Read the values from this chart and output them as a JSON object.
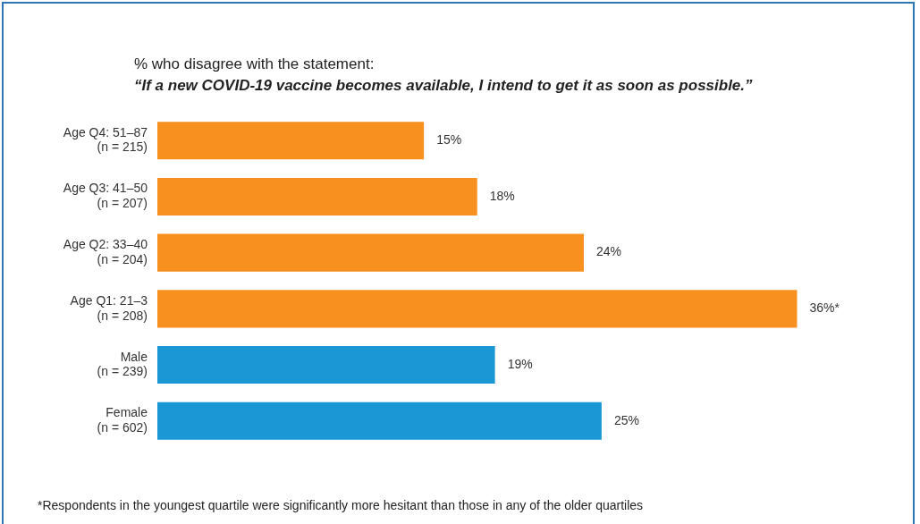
{
  "chart_data": {
    "type": "bar",
    "orientation": "horizontal",
    "title": "% who disagree with the statement:",
    "subtitle": "“If a new COVID-19 vaccine becomes available, I intend to get it as soon as possible.”",
    "categories": [
      "Age Q4: 51–87\n(n = 215)",
      "Age Q3: 41–50\n(n = 207)",
      "Age Q2: 33–40\n(n = 204)",
      "Age Q1: 21–3\n(n = 208)",
      "Male\n(n = 239)",
      "Female\n(n = 602)"
    ],
    "values": [
      15,
      18,
      24,
      36,
      19,
      25
    ],
    "colors": [
      "#f7901e",
      "#f7901e",
      "#f7901e",
      "#f7901e",
      "#1a98d5",
      "#1a98d5"
    ],
    "value_labels": [
      "15%",
      "18%",
      "24%",
      "36%*",
      "19%",
      "25%"
    ],
    "annotations": [
      "*Respondents in the youngest quartile were significantly more hesitant than those in any of the older quartiles"
    ]
  }
}
